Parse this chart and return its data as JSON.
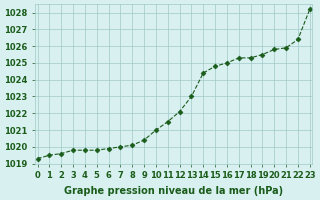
{
  "x": [
    0,
    1,
    2,
    3,
    4,
    5,
    6,
    7,
    8,
    9,
    10,
    11,
    12,
    13,
    14,
    15,
    16,
    17,
    18,
    19,
    20,
    21,
    22,
    23
  ],
  "y": [
    1019.3,
    1019.5,
    1019.6,
    1019.8,
    1019.8,
    1019.8,
    1019.9,
    1020.0,
    1020.1,
    1020.4,
    1021.0,
    1021.5,
    1022.1,
    1023.0,
    1024.4,
    1024.8,
    1025.0,
    1025.3,
    1025.3,
    1025.5,
    1025.8,
    1025.9,
    1026.4,
    1028.2
  ],
  "xlim": [
    -0.2,
    23.2
  ],
  "ylim": [
    1019.0,
    1028.5
  ],
  "yticks": [
    1019,
    1020,
    1021,
    1022,
    1023,
    1024,
    1025,
    1026,
    1027,
    1028
  ],
  "xticks": [
    0,
    1,
    2,
    3,
    4,
    5,
    6,
    7,
    8,
    9,
    10,
    11,
    12,
    13,
    14,
    15,
    16,
    17,
    18,
    19,
    20,
    21,
    22,
    23
  ],
  "xlabel": "Graphe pression niveau de la mer (hPa)",
  "line_color": "#1a5c1a",
  "marker_color": "#1a5c1a",
  "bg_color": "#d8f0f0",
  "grid_color": "#a0c8c8",
  "tick_fontsize": 6,
  "label_fontsize": 7
}
